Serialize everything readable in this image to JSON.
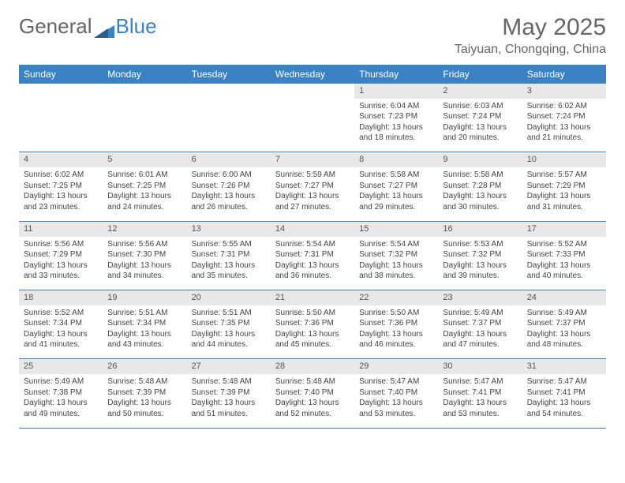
{
  "logo": {
    "text1": "General",
    "text2": "Blue"
  },
  "title": "May 2025",
  "location": "Taiyuan, Chongqing, China",
  "colors": {
    "header_bg": "#3b82c4",
    "header_text": "#ffffff",
    "daynum_bg": "#e8e8e8",
    "border": "#3b82c4",
    "text": "#444444",
    "title": "#666666"
  },
  "day_headers": [
    "Sunday",
    "Monday",
    "Tuesday",
    "Wednesday",
    "Thursday",
    "Friday",
    "Saturday"
  ],
  "weeks": [
    {
      "nums": [
        "",
        "",
        "",
        "",
        "1",
        "2",
        "3"
      ],
      "cells": [
        null,
        null,
        null,
        null,
        {
          "sunrise": "6:04 AM",
          "sunset": "7:23 PM",
          "daylight": "Daylight: 13 hours and 18 minutes."
        },
        {
          "sunrise": "6:03 AM",
          "sunset": "7:24 PM",
          "daylight": "Daylight: 13 hours and 20 minutes."
        },
        {
          "sunrise": "6:02 AM",
          "sunset": "7:24 PM",
          "daylight": "Daylight: 13 hours and 21 minutes."
        }
      ]
    },
    {
      "nums": [
        "4",
        "5",
        "6",
        "7",
        "8",
        "9",
        "10"
      ],
      "cells": [
        {
          "sunrise": "6:02 AM",
          "sunset": "7:25 PM",
          "daylight": "Daylight: 13 hours and 23 minutes."
        },
        {
          "sunrise": "6:01 AM",
          "sunset": "7:25 PM",
          "daylight": "Daylight: 13 hours and 24 minutes."
        },
        {
          "sunrise": "6:00 AM",
          "sunset": "7:26 PM",
          "daylight": "Daylight: 13 hours and 26 minutes."
        },
        {
          "sunrise": "5:59 AM",
          "sunset": "7:27 PM",
          "daylight": "Daylight: 13 hours and 27 minutes."
        },
        {
          "sunrise": "5:58 AM",
          "sunset": "7:27 PM",
          "daylight": "Daylight: 13 hours and 29 minutes."
        },
        {
          "sunrise": "5:58 AM",
          "sunset": "7:28 PM",
          "daylight": "Daylight: 13 hours and 30 minutes."
        },
        {
          "sunrise": "5:57 AM",
          "sunset": "7:29 PM",
          "daylight": "Daylight: 13 hours and 31 minutes."
        }
      ]
    },
    {
      "nums": [
        "11",
        "12",
        "13",
        "14",
        "15",
        "16",
        "17"
      ],
      "cells": [
        {
          "sunrise": "5:56 AM",
          "sunset": "7:29 PM",
          "daylight": "Daylight: 13 hours and 33 minutes."
        },
        {
          "sunrise": "5:56 AM",
          "sunset": "7:30 PM",
          "daylight": "Daylight: 13 hours and 34 minutes."
        },
        {
          "sunrise": "5:55 AM",
          "sunset": "7:31 PM",
          "daylight": "Daylight: 13 hours and 35 minutes."
        },
        {
          "sunrise": "5:54 AM",
          "sunset": "7:31 PM",
          "daylight": "Daylight: 13 hours and 36 minutes."
        },
        {
          "sunrise": "5:54 AM",
          "sunset": "7:32 PM",
          "daylight": "Daylight: 13 hours and 38 minutes."
        },
        {
          "sunrise": "5:53 AM",
          "sunset": "7:32 PM",
          "daylight": "Daylight: 13 hours and 39 minutes."
        },
        {
          "sunrise": "5:52 AM",
          "sunset": "7:33 PM",
          "daylight": "Daylight: 13 hours and 40 minutes."
        }
      ]
    },
    {
      "nums": [
        "18",
        "19",
        "20",
        "21",
        "22",
        "23",
        "24"
      ],
      "cells": [
        {
          "sunrise": "5:52 AM",
          "sunset": "7:34 PM",
          "daylight": "Daylight: 13 hours and 41 minutes."
        },
        {
          "sunrise": "5:51 AM",
          "sunset": "7:34 PM",
          "daylight": "Daylight: 13 hours and 43 minutes."
        },
        {
          "sunrise": "5:51 AM",
          "sunset": "7:35 PM",
          "daylight": "Daylight: 13 hours and 44 minutes."
        },
        {
          "sunrise": "5:50 AM",
          "sunset": "7:36 PM",
          "daylight": "Daylight: 13 hours and 45 minutes."
        },
        {
          "sunrise": "5:50 AM",
          "sunset": "7:36 PM",
          "daylight": "Daylight: 13 hours and 46 minutes."
        },
        {
          "sunrise": "5:49 AM",
          "sunset": "7:37 PM",
          "daylight": "Daylight: 13 hours and 47 minutes."
        },
        {
          "sunrise": "5:49 AM",
          "sunset": "7:37 PM",
          "daylight": "Daylight: 13 hours and 48 minutes."
        }
      ]
    },
    {
      "nums": [
        "25",
        "26",
        "27",
        "28",
        "29",
        "30",
        "31"
      ],
      "cells": [
        {
          "sunrise": "5:49 AM",
          "sunset": "7:38 PM",
          "daylight": "Daylight: 13 hours and 49 minutes."
        },
        {
          "sunrise": "5:48 AM",
          "sunset": "7:39 PM",
          "daylight": "Daylight: 13 hours and 50 minutes."
        },
        {
          "sunrise": "5:48 AM",
          "sunset": "7:39 PM",
          "daylight": "Daylight: 13 hours and 51 minutes."
        },
        {
          "sunrise": "5:48 AM",
          "sunset": "7:40 PM",
          "daylight": "Daylight: 13 hours and 52 minutes."
        },
        {
          "sunrise": "5:47 AM",
          "sunset": "7:40 PM",
          "daylight": "Daylight: 13 hours and 53 minutes."
        },
        {
          "sunrise": "5:47 AM",
          "sunset": "7:41 PM",
          "daylight": "Daylight: 13 hours and 53 minutes."
        },
        {
          "sunrise": "5:47 AM",
          "sunset": "7:41 PM",
          "daylight": "Daylight: 13 hours and 54 minutes."
        }
      ]
    }
  ]
}
